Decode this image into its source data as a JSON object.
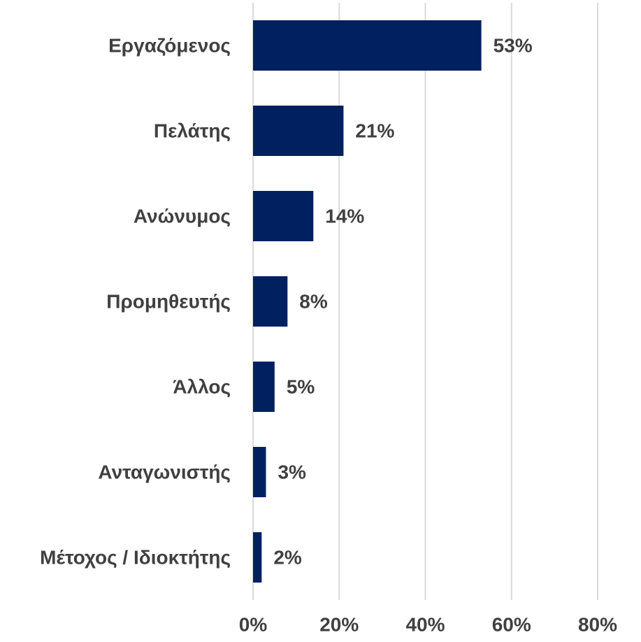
{
  "chart_data": {
    "type": "hbar",
    "categories": [
      "Εργαζόμενος",
      "Πελάτης",
      "Ανώνυμος",
      "Προμηθευτής",
      "Άλλος",
      "Ανταγωνιστής",
      "Μέτοχος / Ιδιοκτήτης"
    ],
    "values": [
      53,
      21,
      14,
      8,
      5,
      3,
      2
    ],
    "value_labels": [
      "53%",
      "21%",
      "14%",
      "8%",
      "5%",
      "3%",
      "2%"
    ],
    "color": "#002060",
    "xlim": [
      0,
      80
    ],
    "xticks": [
      {
        "value": 0,
        "label": "0%"
      },
      {
        "value": 20,
        "label": "20%"
      },
      {
        "value": 40,
        "label": "40%"
      },
      {
        "value": 60,
        "label": "60%"
      },
      {
        "value": 80,
        "label": "80%"
      }
    ],
    "grid": true
  }
}
